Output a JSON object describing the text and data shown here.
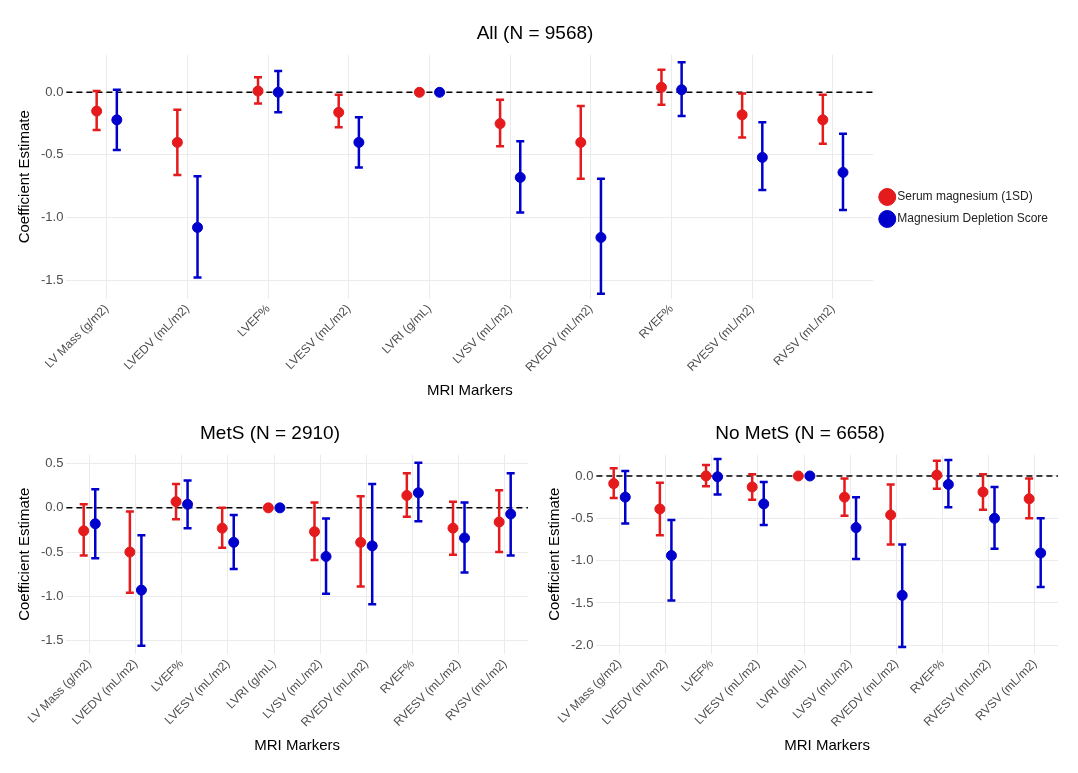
{
  "chart_data": [
    {
      "type": "scatter",
      "title": "All (N = 9568)",
      "xlabel": "MRI Markers",
      "ylabel": "Coefficient Estimate",
      "categories": [
        "LV Mass (g/m2)",
        "LVEDV (mL/m2)",
        "LVEF%",
        "LVESV (mL/m2)",
        "LVRI (g/mL)",
        "LVSV (mL/m2)",
        "RVEDV (mL/m2)",
        "RVEF%",
        "RVESV (mL/m2)",
        "RVSV (mL/m2)"
      ],
      "series": [
        {
          "name": "Serum magnesium (1SD)",
          "color": "#e41a1c",
          "values": [
            -0.15,
            -0.4,
            0.01,
            -0.16,
            0,
            -0.25,
            -0.4,
            0.04,
            -0.18,
            -0.22
          ],
          "errors": [
            [
              -0.3,
              0.01
            ],
            [
              -0.66,
              -0.14
            ],
            [
              -0.09,
              0.12
            ],
            [
              -0.28,
              -0.02
            ],
            null,
            [
              -0.43,
              -0.06
            ],
            [
              -0.69,
              -0.11
            ],
            [
              -0.1,
              0.18
            ],
            [
              -0.36,
              -0.01
            ],
            [
              -0.41,
              -0.02
            ]
          ]
        },
        {
          "name": "Magnesium Depletion Score",
          "color": "#0000cd",
          "values": [
            -0.22,
            -1.08,
            0.0,
            -0.4,
            0,
            -0.68,
            -1.16,
            0.02,
            -0.52,
            -0.64
          ],
          "errors": [
            [
              -0.46,
              0.02
            ],
            [
              -1.48,
              -0.67
            ],
            [
              -0.16,
              0.17
            ],
            [
              -0.6,
              -0.2
            ],
            null,
            [
              -0.96,
              -0.39
            ],
            [
              -1.61,
              -0.69
            ],
            [
              -0.19,
              0.24
            ],
            [
              -0.78,
              -0.24
            ],
            [
              -0.94,
              -0.33
            ]
          ]
        }
      ],
      "ylim": [
        -1.65,
        0.3
      ],
      "yticks": [
        {
          "value": -1.5,
          "label": "-1.5"
        },
        {
          "value": -1,
          "label": "-1.0"
        },
        {
          "value": -0.5,
          "label": "-0.5"
        },
        {
          "value": 0,
          "label": "0.0"
        }
      ],
      "ref_lines": [
        {
          "axis": "y",
          "value": 0,
          "color": "#000000",
          "line_style": "dashed"
        }
      ],
      "grid": true,
      "legend": "right",
      "marker": "circle"
    },
    {
      "type": "scatter",
      "title": "MetS (N = 2910)",
      "xlabel": "MRI Markers",
      "ylabel": "Coefficient Estimate",
      "categories": [
        "LV Mass (g/m2)",
        "LVEDV (mL/m2)",
        "LVEF%",
        "LVESV (mL/m2)",
        "LVRI (g/mL)",
        "LVSV (mL/m2)",
        "RVEDV (mL/m2)",
        "RVEF%",
        "RVESV (mL/m2)",
        "RVSV (mL/m2)"
      ],
      "series": [
        {
          "color": "#e41a1c",
          "values": [
            -0.26,
            -0.5,
            0.07,
            -0.23,
            0,
            -0.27,
            -0.39,
            0.14,
            -0.23,
            -0.16
          ],
          "errors": [
            [
              -0.54,
              0.04
            ],
            [
              -0.96,
              -0.04
            ],
            [
              -0.13,
              0.27
            ],
            [
              -0.45,
              0.0
            ],
            null,
            [
              -0.59,
              0.06
            ],
            [
              -0.89,
              0.13
            ],
            [
              -0.1,
              0.39
            ],
            [
              -0.53,
              0.07
            ],
            [
              -0.5,
              0.2
            ]
          ]
        },
        {
          "color": "#0000cd",
          "values": [
            -0.18,
            -0.93,
            0.04,
            -0.39,
            0,
            -0.55,
            -0.43,
            0.17,
            -0.34,
            -0.07
          ],
          "errors": [
            [
              -0.57,
              0.21
            ],
            [
              -1.56,
              -0.31
            ],
            [
              -0.23,
              0.31
            ],
            [
              -0.69,
              -0.08
            ],
            null,
            [
              -0.97,
              -0.12
            ],
            [
              -1.09,
              0.27
            ],
            [
              -0.15,
              0.51
            ],
            [
              -0.73,
              0.06
            ],
            [
              -0.54,
              0.39
            ]
          ]
        }
      ],
      "ylim": [
        -1.65,
        0.6
      ],
      "yticks": [
        {
          "value": -1.5,
          "label": "-1.5"
        },
        {
          "value": -1,
          "label": "-1.0"
        },
        {
          "value": -0.5,
          "label": "-0.5"
        },
        {
          "value": 0,
          "label": "0.0"
        },
        {
          "value": 0.5,
          "label": "0.5"
        }
      ],
      "ref_lines": [
        {
          "axis": "y",
          "value": 0,
          "color": "#000000",
          "line_style": "dashed"
        }
      ],
      "grid": true,
      "marker": "circle"
    },
    {
      "type": "scatter",
      "title": "No MetS (N = 6658)",
      "xlabel": "MRI Markers",
      "ylabel": "Coefficient Estimate",
      "categories": [
        "LV Mass (g/m2)",
        "LVEDV (mL/m2)",
        "LVEF%",
        "LVESV (mL/m2)",
        "LVRI (g/mL)",
        "LVSV (mL/m2)",
        "RVEDV (mL/m2)",
        "RVEF%",
        "RVESV (mL/m2)",
        "RVSV (mL/m2)"
      ],
      "series": [
        {
          "color": "#e41a1c",
          "values": [
            -0.09,
            -0.39,
            0.0,
            -0.13,
            0,
            -0.25,
            -0.46,
            0.01,
            -0.19,
            -0.27
          ],
          "errors": [
            [
              -0.26,
              0.09
            ],
            [
              -0.7,
              -0.08
            ],
            [
              -0.12,
              0.13
            ],
            [
              -0.28,
              0.02
            ],
            null,
            [
              -0.47,
              -0.03
            ],
            [
              -0.81,
              -0.1
            ],
            [
              -0.15,
              0.18
            ],
            [
              -0.4,
              0.02
            ],
            [
              -0.5,
              -0.03
            ]
          ]
        },
        {
          "color": "#0000cd",
          "values": [
            -0.25,
            -0.94,
            -0.01,
            -0.33,
            0,
            -0.61,
            -1.41,
            -0.1,
            -0.5,
            -0.91
          ],
          "errors": [
            [
              -0.56,
              0.06
            ],
            [
              -1.47,
              -0.52
            ],
            [
              -0.22,
              0.2
            ],
            [
              -0.58,
              -0.07
            ],
            null,
            [
              -0.98,
              -0.25
            ],
            [
              -2.02,
              -0.81
            ],
            [
              -0.37,
              0.19
            ],
            [
              -0.86,
              -0.13
            ],
            [
              -1.31,
              -0.5
            ]
          ]
        }
      ],
      "ylim": [
        -2.1,
        0.25
      ],
      "yticks": [
        {
          "value": -2,
          "label": "-2.0"
        },
        {
          "value": -1.5,
          "label": "-1.5"
        },
        {
          "value": -1,
          "label": "-1.0"
        },
        {
          "value": -0.5,
          "label": "-0.5"
        },
        {
          "value": 0,
          "label": "0.0"
        }
      ],
      "ref_lines": [
        {
          "axis": "y",
          "value": 0,
          "color": "#000000",
          "line_style": "dashed"
        }
      ],
      "grid": true,
      "marker": "circle"
    }
  ]
}
